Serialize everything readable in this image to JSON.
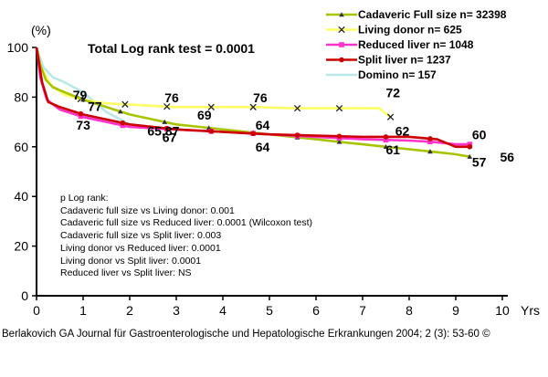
{
  "chart_data": {
    "type": "line",
    "title": "Total Log rank test = 0.0001",
    "ylabel": "(%)",
    "xlabel": "Yrs",
    "xlim": [
      0,
      10
    ],
    "ylim": [
      0,
      100
    ],
    "xticks": [
      0,
      1,
      2,
      3,
      4,
      5,
      6,
      7,
      8,
      9,
      10
    ],
    "yticks": [
      0,
      20,
      40,
      60,
      80,
      100
    ],
    "grid": false,
    "legend_position": "top-right",
    "series": [
      {
        "name": "Cadaveric Full size n= 32398",
        "color": "#a8c400",
        "marker": "triangle",
        "x": [
          0,
          0.08,
          0.2,
          0.35,
          0.6,
          1.0,
          1.5,
          2.0,
          2.5,
          3.0,
          3.5,
          4.0,
          4.5,
          5.0,
          5.5,
          6.0,
          6.5,
          7.0,
          7.5,
          8.0,
          8.5,
          9.0,
          9.3
        ],
        "y": [
          100,
          93,
          87,
          84,
          82,
          79,
          76,
          73,
          71,
          69,
          68,
          67,
          66,
          65,
          64,
          63,
          62,
          61,
          60,
          59,
          58,
          57,
          56
        ],
        "marker_x": [
          1.0,
          1.8,
          2.75,
          3.7,
          4.65,
          5.6,
          6.5,
          7.5,
          8.45,
          9.3
        ]
      },
      {
        "name": "Living donor n= 625",
        "color": "#ffff66",
        "marker": "x",
        "x": [
          0,
          0.1,
          0.3,
          0.6,
          1.0,
          1.5,
          2.0,
          2.5,
          3.0,
          3.5,
          4.0,
          4.7,
          5.5,
          6.5,
          7.35,
          7.6
        ],
        "y": [
          100,
          92,
          85,
          81,
          79,
          77.5,
          77,
          76.5,
          76,
          76,
          76,
          76,
          75.5,
          75.5,
          75.5,
          72
        ],
        "marker_x": [
          0.95,
          1.9,
          2.8,
          3.75,
          4.65,
          5.6,
          6.5,
          7.6
        ]
      },
      {
        "name": "Reduced liver n= 1048",
        "color": "#ff33cc",
        "marker": "square",
        "x": [
          0,
          0.08,
          0.22,
          0.5,
          1.0,
          1.5,
          2.0,
          2.5,
          3.0,
          4.0,
          5.0,
          6.0,
          7.0,
          8.0,
          8.5,
          9.0,
          9.35
        ],
        "y": [
          100,
          88,
          79,
          75,
          72,
          70,
          68,
          67.5,
          67,
          66,
          65,
          64,
          63,
          62.5,
          62,
          61,
          61
        ],
        "marker_x": [
          0.95,
          1.85,
          2.8,
          3.75,
          4.65,
          5.6,
          6.5,
          7.5,
          8.45,
          9.3
        ]
      },
      {
        "name": "Split liver n= 1237",
        "color": "#cc0000",
        "marker": "circle",
        "x": [
          0,
          0.12,
          0.25,
          0.5,
          1.0,
          1.5,
          2.0,
          2.5,
          3.0,
          4.0,
          5.0,
          6.0,
          7.0,
          8.0,
          8.6,
          9.0,
          9.35
        ],
        "y": [
          100,
          86,
          78,
          76,
          73,
          71,
          69,
          68,
          67,
          66,
          65,
          64.5,
          64,
          64,
          63,
          60,
          60
        ],
        "marker_x": [
          0.95,
          1.85,
          2.8,
          3.75,
          4.65,
          5.6,
          6.5,
          7.5,
          8.45,
          9.3
        ]
      },
      {
        "name": "Domino n= 157",
        "color": "#b8e8e8",
        "marker": "none",
        "x": [
          0,
          0.15,
          0.35,
          0.6,
          1.0,
          1.5,
          2.0,
          2.5,
          3.0
        ],
        "y": [
          100,
          92,
          88,
          86,
          82,
          74,
          69,
          68,
          67
        ],
        "marker_x": []
      }
    ],
    "data_labels": [
      {
        "text": "79",
        "x": 0.78,
        "y": 79
      },
      {
        "text": "77",
        "x": 1.1,
        "y": 74.5
      },
      {
        "text": "73",
        "x": 0.85,
        "y": 67
      },
      {
        "text": "76",
        "x": 2.75,
        "y": 78
      },
      {
        "text": "69",
        "x": 3.45,
        "y": 71
      },
      {
        "text": "65,87",
        "x": 2.38,
        "y": 64.5
      },
      {
        "text": "67",
        "x": 2.7,
        "y": 62
      },
      {
        "text": "76",
        "x": 4.65,
        "y": 78
      },
      {
        "text": "64",
        "x": 4.7,
        "y": 67
      },
      {
        "text": "64",
        "x": 4.7,
        "y": 58
      },
      {
        "text": "72",
        "x": 7.5,
        "y": 80
      },
      {
        "text": "62",
        "x": 7.7,
        "y": 64.5
      },
      {
        "text": "61",
        "x": 7.5,
        "y": 57
      },
      {
        "text": "60",
        "x": 9.35,
        "y": 63
      },
      {
        "text": "57",
        "x": 9.35,
        "y": 52
      },
      {
        "text": "56",
        "x": 9.95,
        "y": 54
      }
    ],
    "plog_title": "p Log rank:",
    "plog_lines": [
      "Cadaveric full size vs Living donor: 0.001",
      "Cadaveric full size vs Reduced liver: 0.0001 (Wilcoxon test)",
      "Cadaveric full size vs Split liver: 0.003",
      "Living donor vs Reduced liver: 0.0001",
      "Living donor vs Split liver: 0.0001",
      "Reduced liver vs Split liver: NS"
    ]
  },
  "caption": "Berlakovich GA Journal für Gastroenterologische und Hepatologische Erkrankungen 2004; 2 (3): 53-60 ©"
}
